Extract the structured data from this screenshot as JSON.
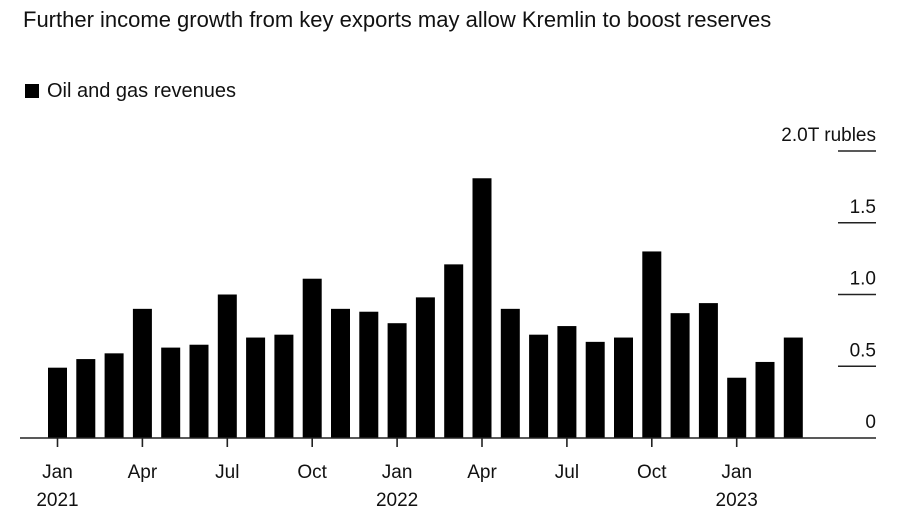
{
  "chart_data": {
    "type": "bar",
    "title": "Further income growth from key exports may allow Kremlin to boost reserves",
    "legend": [
      {
        "label": "Oil and gas revenues",
        "color": "#000000"
      }
    ],
    "legend_placement": "top-left",
    "xlabel": "",
    "ylabel": "",
    "y_unit_label": "2.0T rubles",
    "ylim": [
      0,
      2.0
    ],
    "y_ticks": [
      {
        "value": 0,
        "label": "0"
      },
      {
        "value": 0.5,
        "label": "0.5"
      },
      {
        "value": 1.0,
        "label": "1.0"
      },
      {
        "value": 1.5,
        "label": "1.5"
      },
      {
        "value": 2.0,
        "label": "2.0T rubles"
      }
    ],
    "y_axis_side": "right",
    "grid": false,
    "categories": [
      "2021-01",
      "2021-02",
      "2021-03",
      "2021-04",
      "2021-05",
      "2021-06",
      "2021-07",
      "2021-08",
      "2021-09",
      "2021-10",
      "2021-11",
      "2021-12",
      "2022-01",
      "2022-02",
      "2022-03",
      "2022-04",
      "2022-05",
      "2022-06",
      "2022-07",
      "2022-08",
      "2022-09",
      "2022-10",
      "2022-11",
      "2022-12",
      "2023-01",
      "2023-02",
      "2023-03"
    ],
    "series": [
      {
        "name": "Oil and gas revenues",
        "color": "#000000",
        "values": [
          0.49,
          0.55,
          0.59,
          0.9,
          0.63,
          0.65,
          1.0,
          0.7,
          0.72,
          1.11,
          0.9,
          0.88,
          0.8,
          0.98,
          1.21,
          1.81,
          0.9,
          0.72,
          0.78,
          0.67,
          0.7,
          1.3,
          0.87,
          0.94,
          0.42,
          0.53,
          0.7
        ]
      }
    ],
    "x_ticks": [
      {
        "index": 0,
        "month": "Jan",
        "year": "2021"
      },
      {
        "index": 3,
        "month": "Apr",
        "year": ""
      },
      {
        "index": 6,
        "month": "Jul",
        "year": ""
      },
      {
        "index": 9,
        "month": "Oct",
        "year": ""
      },
      {
        "index": 12,
        "month": "Jan",
        "year": "2022"
      },
      {
        "index": 15,
        "month": "Apr",
        "year": ""
      },
      {
        "index": 18,
        "month": "Jul",
        "year": ""
      },
      {
        "index": 21,
        "month": "Oct",
        "year": ""
      },
      {
        "index": 24,
        "month": "Jan",
        "year": "2023"
      }
    ]
  }
}
